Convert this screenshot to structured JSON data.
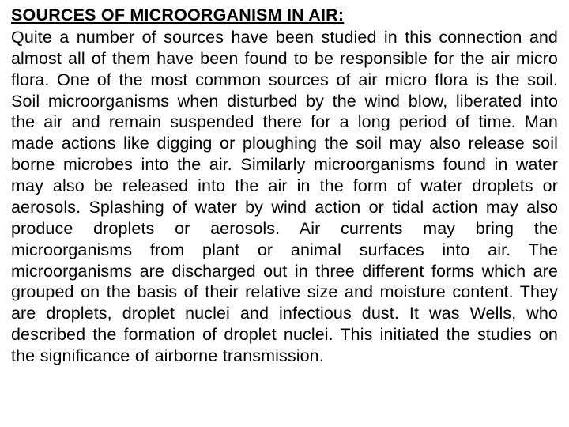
{
  "document": {
    "heading": "SOURCES OF MICROORGANISM IN AIR:",
    "body": "Quite a number of sources have been studied in this connection and almost all of them have been found to be responsible for the air micro flora. One of the most common sources of air micro flora is the soil. Soil microorganisms when disturbed by the wind blow, liberated into the air and remain suspended there for a long period of time. Man made actions like digging or ploughing the soil may also release soil borne microbes into the air. Similarly microorganisms found in water may also be released into the air in the form of water droplets or aerosols. Splashing of water by wind action or tidal action may also produce droplets or aerosols. Air currents may bring the microorganisms from plant or animal surfaces into air. The microorganisms are discharged out in three different forms which are grouped on the basis of their relative size and moisture content. They are droplets, droplet nuclei and infectious dust. It was Wells, who described the formation of droplet nuclei. This initiated the studies on the significance of airborne transmission.",
    "colors": {
      "background": "#ffffff",
      "text": "#000000"
    },
    "typography": {
      "font_family": "Arial",
      "heading_fontsize_pt": 16,
      "body_fontsize_pt": 16,
      "heading_weight": "bold",
      "body_weight": "normal",
      "heading_underline": true,
      "body_align": "justify",
      "line_height": 1.25
    }
  }
}
